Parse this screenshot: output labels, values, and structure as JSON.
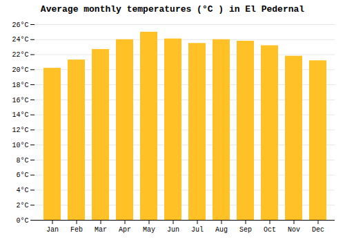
{
  "chart_data": {
    "type": "bar",
    "title": "Average monthly temperatures (°C ) in El Pedernal",
    "categories": [
      "Jan",
      "Feb",
      "Mar",
      "Apr",
      "May",
      "Jun",
      "Jul",
      "Aug",
      "Sep",
      "Oct",
      "Nov",
      "Dec"
    ],
    "values": [
      20.2,
      21.3,
      22.7,
      24.0,
      25.0,
      24.1,
      23.5,
      24.0,
      23.8,
      23.2,
      21.8,
      21.2
    ],
    "color": "#FFC125",
    "ylim": [
      0,
      26
    ],
    "yticks": [
      {
        "value": 0,
        "label": "0°C"
      },
      {
        "value": 2,
        "label": "2°C"
      },
      {
        "value": 4,
        "label": "4°C"
      },
      {
        "value": 6,
        "label": "6°C"
      },
      {
        "value": 8,
        "label": "8°C"
      },
      {
        "value": 10,
        "label": "10°C"
      },
      {
        "value": 12,
        "label": "12°C"
      },
      {
        "value": 14,
        "label": "14°C"
      },
      {
        "value": 16,
        "label": "16°C"
      },
      {
        "value": 18,
        "label": "18°C"
      },
      {
        "value": 20,
        "label": "20°C"
      },
      {
        "value": 22,
        "label": "22°C"
      },
      {
        "value": 24,
        "label": "24°C"
      },
      {
        "value": 26,
        "label": "26°C"
      }
    ],
    "grid": true
  }
}
